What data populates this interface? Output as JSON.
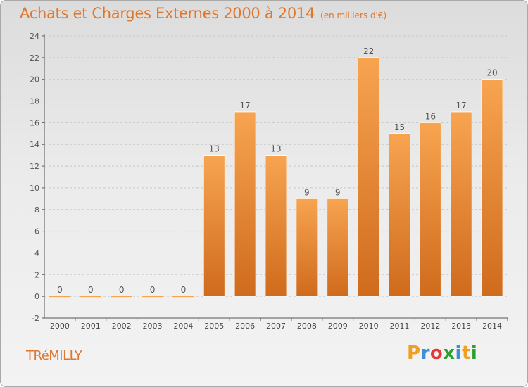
{
  "header": {
    "title": "Achats et Charges Externes 2000 à 2014",
    "unit": "(en milliers d'€)"
  },
  "footer": {
    "commune": "TRéMILLY",
    "brand": "Proxiti",
    "brand_colors": [
      "#f0a020",
      "#3c8ed6",
      "#e23a3a",
      "#2ca02c",
      "#3c8ed6",
      "#f0a020",
      "#2ca02c"
    ]
  },
  "colors": {
    "bar_light": "#f7a450",
    "bar_dark": "#cf6b1c",
    "title": "#e0762b",
    "grid": "#c8c8c8",
    "axis": "#555555"
  },
  "chart_data": {
    "type": "bar",
    "title": "Achats et Charges Externes 2000 à 2014",
    "subtitle": "(en milliers d'€)",
    "xlabel": "",
    "ylabel": "",
    "categories": [
      "2000",
      "2001",
      "2002",
      "2003",
      "2004",
      "2005",
      "2006",
      "2007",
      "2008",
      "2009",
      "2010",
      "2011",
      "2012",
      "2013",
      "2014"
    ],
    "values": [
      0,
      0,
      0,
      0,
      0,
      13,
      17,
      13,
      9,
      9,
      22,
      15,
      16,
      17,
      20
    ],
    "data_labels": [
      "0",
      "0",
      "0",
      "0",
      "0",
      "13",
      "17",
      "13",
      "9",
      "9",
      "22",
      "15",
      "16",
      "17",
      "20"
    ],
    "ylim": [
      -2,
      24
    ],
    "yticks": [
      -2,
      0,
      2,
      4,
      6,
      8,
      10,
      12,
      14,
      16,
      18,
      20,
      22,
      24
    ],
    "grid": true,
    "legend": "none"
  }
}
